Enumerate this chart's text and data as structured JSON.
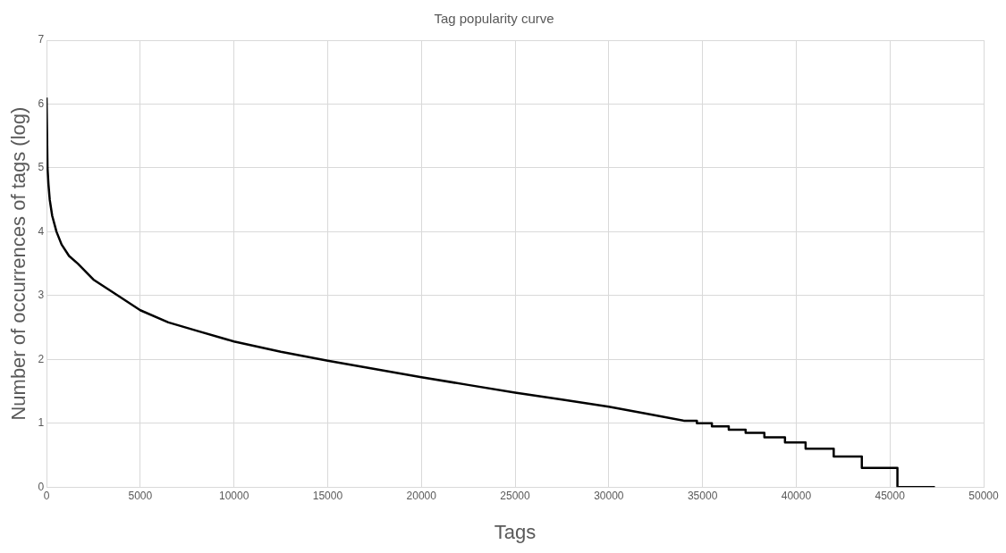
{
  "chart_data": {
    "type": "line",
    "title": "Tag popularity curve",
    "xlabel": "Tags",
    "ylabel": "Number of occurrences of tags (log)",
    "x": [
      0,
      50,
      100,
      170,
      300,
      530,
      800,
      1200,
      1670,
      2500,
      3800,
      5000,
      6500,
      8000,
      10000,
      12500,
      15000,
      17500,
      20000,
      22500,
      25000,
      27500,
      30000,
      32000,
      34000,
      34700,
      34700,
      35500,
      35500,
      36400,
      36400,
      37300,
      37300,
      38300,
      38300,
      39400,
      39400,
      40500,
      40500,
      42000,
      42000,
      43500,
      43500,
      45400,
      45400,
      47400
    ],
    "values": [
      6.1,
      5.0,
      4.75,
      4.5,
      4.25,
      4.0,
      3.8,
      3.62,
      3.5,
      3.25,
      3.0,
      2.77,
      2.58,
      2.45,
      2.28,
      2.12,
      1.98,
      1.85,
      1.72,
      1.6,
      1.48,
      1.37,
      1.26,
      1.15,
      1.04,
      1.04,
      1.0,
      1.0,
      0.95,
      0.95,
      0.9,
      0.9,
      0.85,
      0.85,
      0.78,
      0.78,
      0.7,
      0.7,
      0.6,
      0.6,
      0.48,
      0.48,
      0.3,
      0.3,
      0,
      0
    ],
    "color": "#000000",
    "marker": "none",
    "line_style": "solid",
    "xlim": [
      0,
      50000
    ],
    "xticks": [
      0,
      5000,
      10000,
      15000,
      20000,
      25000,
      30000,
      35000,
      40000,
      45000,
      50000
    ],
    "ylim": [
      0,
      7
    ],
    "yticks": [
      0,
      1,
      2,
      3,
      4,
      5,
      6,
      7
    ],
    "grid": true,
    "legend": false
  }
}
